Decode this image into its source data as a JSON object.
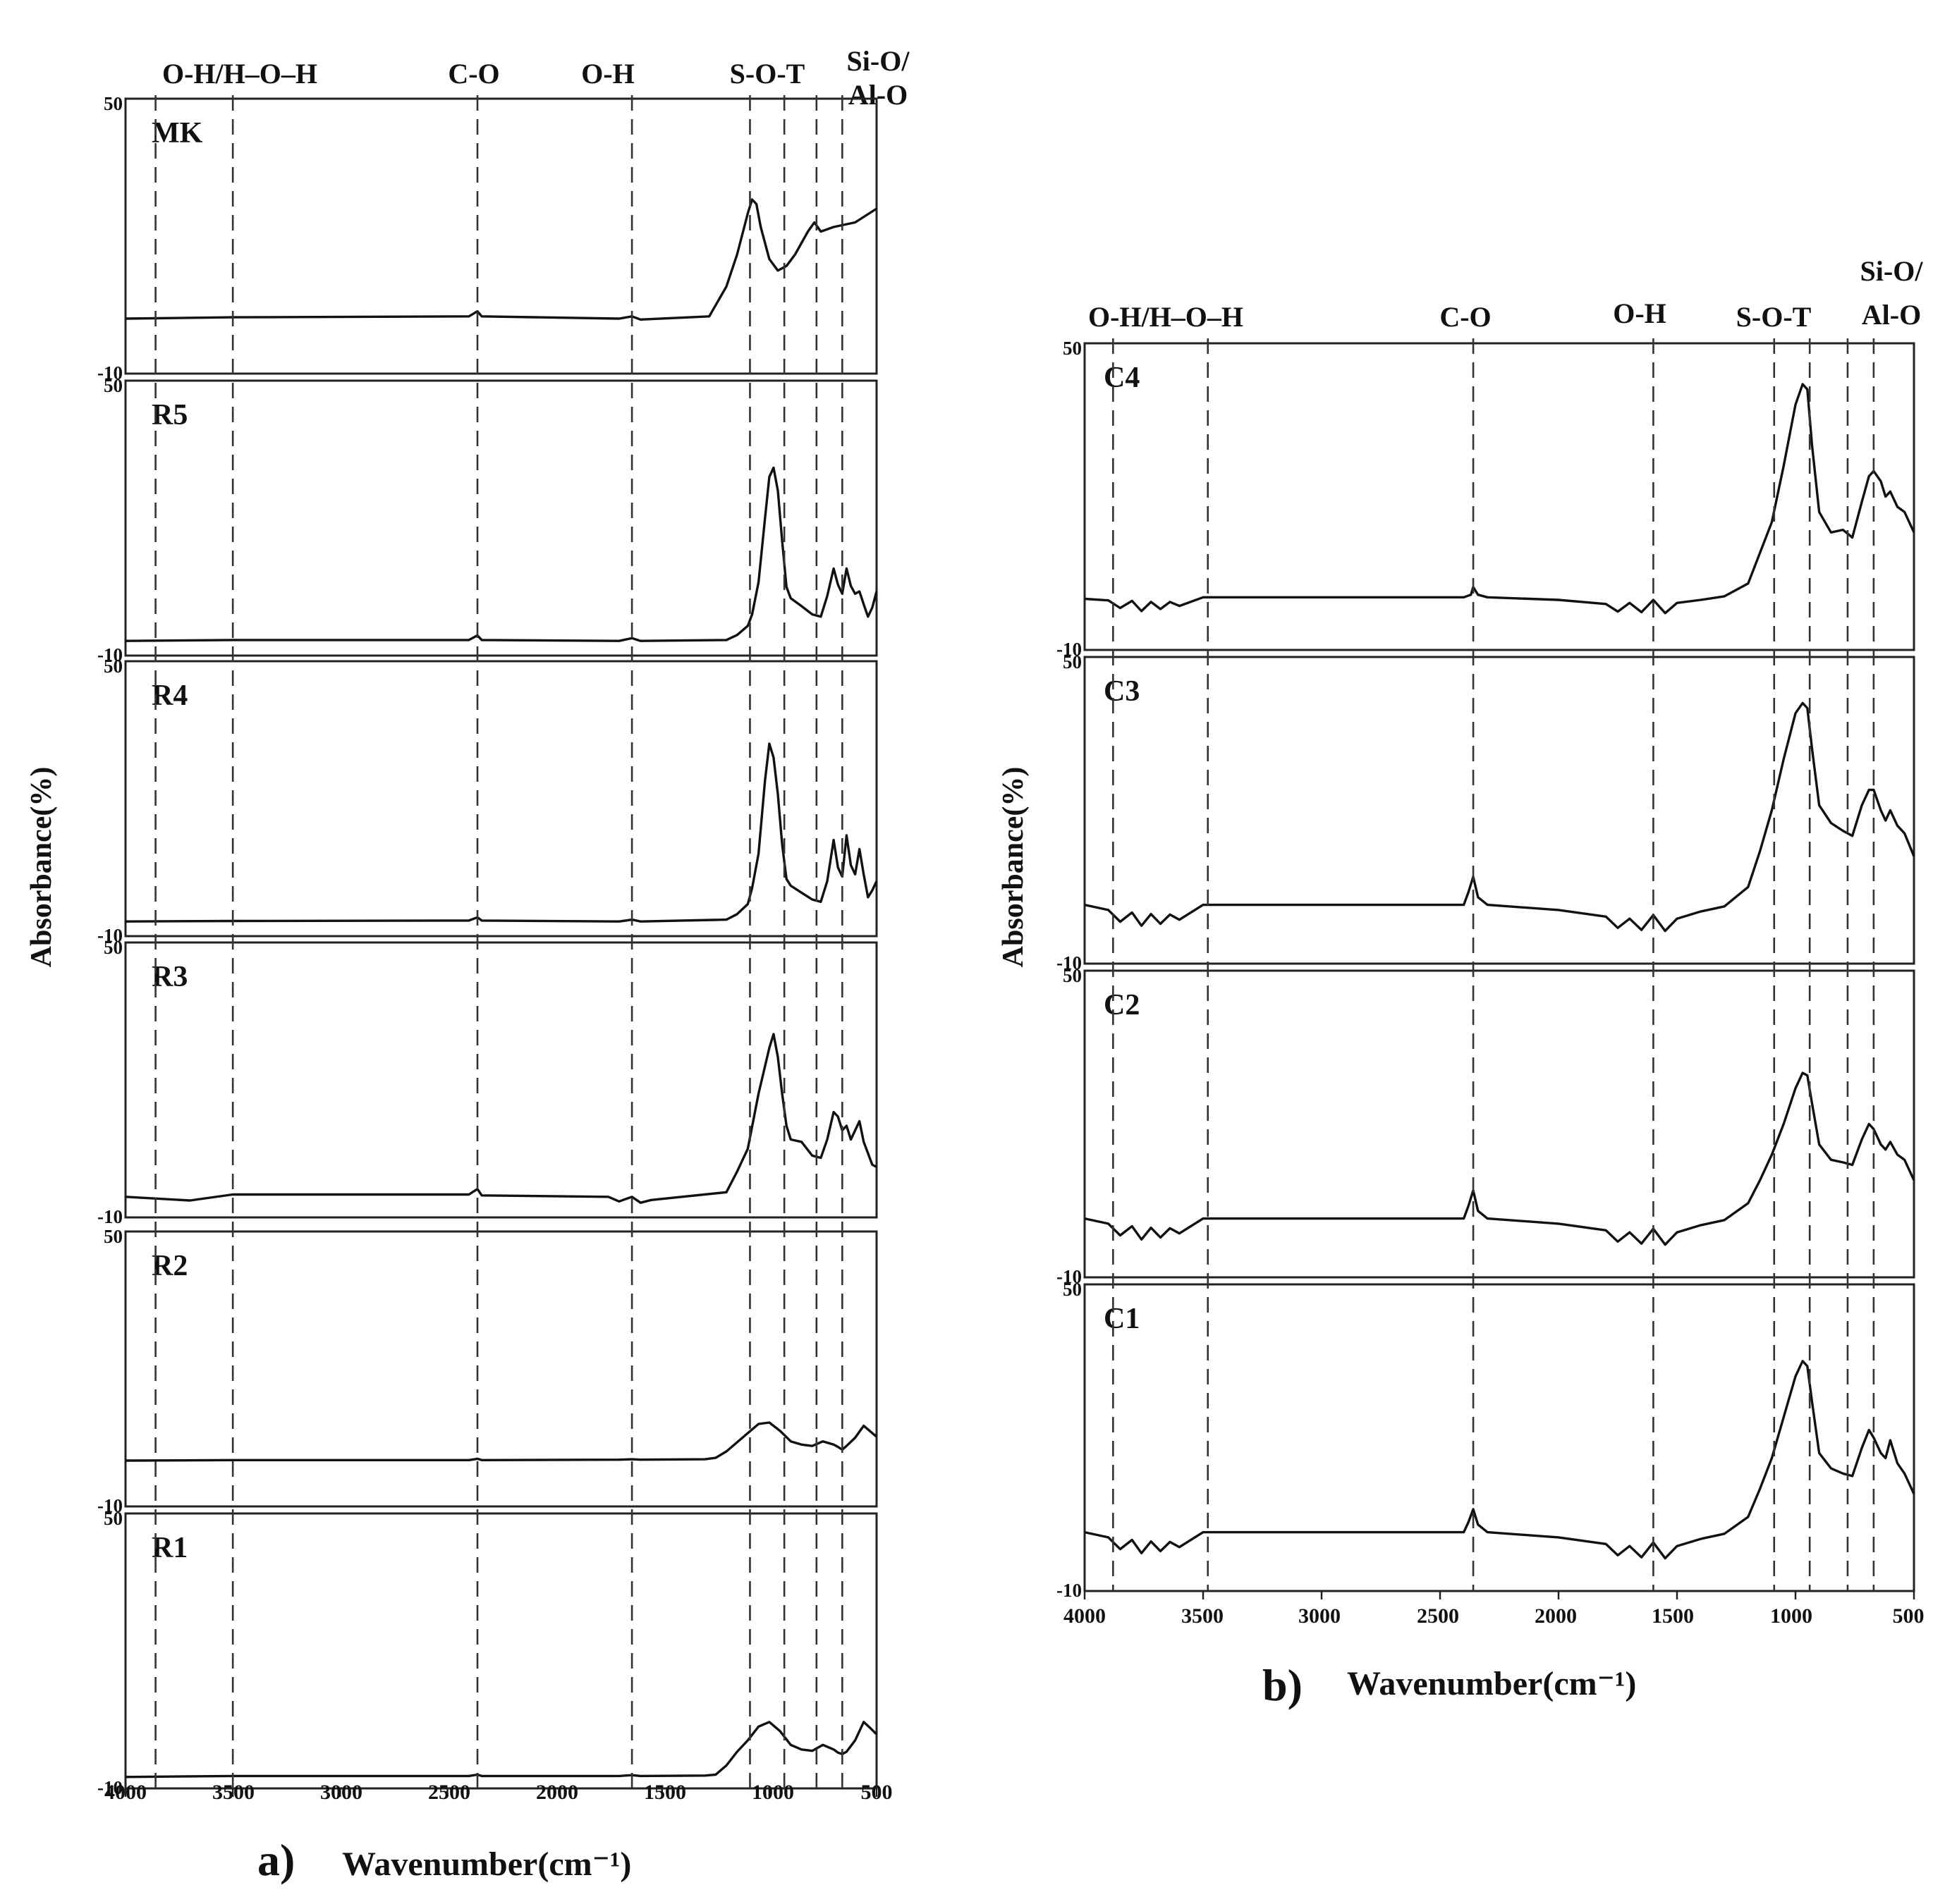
{
  "figure": {
    "a": {
      "label": "a)",
      "xlabel": "Wavenumber(cm⁻¹)",
      "ylabel": "Absorbance(%)",
      "band_labels": [
        "O-H/H–O–H",
        "C-O",
        "O-H",
        "S-O-T",
        "Si-O/",
        "Al-O"
      ],
      "ytick_top": "50",
      "ytick_bottom": "-10",
      "xticks": [
        "4000",
        "3500",
        "3000",
        "2500",
        "2000",
        "1500",
        "1000",
        "500"
      ],
      "panels": [
        "MK",
        "R5",
        "R4",
        "R3",
        "R2",
        "R1"
      ]
    },
    "b": {
      "label": "b)",
      "xlabel": "Wavenumber(cm⁻¹)",
      "ylabel": "Absorbance(%)",
      "band_labels": [
        "O-H/H–O–H",
        "C-O",
        "O-H",
        "S-O-T",
        "Si-O/",
        "Al-O"
      ],
      "ytick_top": "50",
      "ytick_bottom": "-10",
      "xticks": [
        "4000",
        "3500",
        "3000",
        "2500",
        "2000",
        "1500",
        "1000",
        "500"
      ],
      "panels": [
        "C4",
        "C3",
        "C2",
        "C1"
      ]
    }
  },
  "chart_data": [
    {
      "type": "line",
      "panel_group": "a)",
      "xlabel": "Wavenumber(cm⁻¹)",
      "ylabel": "Absorbance(%)",
      "xlim": [
        4000,
        500
      ],
      "ylim": [
        -10,
        50
      ],
      "reference_lines": [
        3860,
        3500,
        2360,
        1640,
        1090,
        930,
        780,
        660
      ],
      "band_labels": [
        "O-H/H–O–H",
        "C-O",
        "O-H",
        "S-O-T",
        "Si-O/Al-O"
      ],
      "series": [
        {
          "name": "MK",
          "x": [
            4000,
            3500,
            2400,
            2360,
            2340,
            1700,
            1640,
            1600,
            1280,
            1200,
            1150,
            1100,
            1080,
            1060,
            1040,
            1000,
            960,
            920,
            880,
            820,
            790,
            760,
            700,
            600,
            500
          ],
          "y": [
            2,
            2.3,
            2.5,
            3.6,
            2.5,
            2,
            2.5,
            1.8,
            2.5,
            9,
            16,
            25,
            28,
            27,
            22,
            15,
            12.5,
            13.5,
            16,
            21,
            23,
            21,
            22,
            23,
            26
          ]
        },
        {
          "name": "R5",
          "x": [
            4000,
            3500,
            2400,
            2360,
            2340,
            1700,
            1640,
            1600,
            1200,
            1150,
            1100,
            1080,
            1050,
            1020,
            1000,
            980,
            960,
            940,
            920,
            900,
            850,
            800,
            760,
            730,
            700,
            680,
            660,
            640,
            620,
            600,
            580,
            560,
            540,
            520,
            500
          ],
          "y": [
            -6.8,
            -6.6,
            -6.6,
            -5.6,
            -6.6,
            -6.8,
            -6.2,
            -6.8,
            -6.6,
            -5.5,
            -3.5,
            -1,
            6,
            20,
            29,
            31,
            26,
            15,
            5,
            2.5,
            0.8,
            -1,
            -1.5,
            3,
            9,
            5.5,
            3.5,
            9,
            5.2,
            3.5,
            4,
            1.2,
            -1.5,
            0.5,
            4
          ]
        },
        {
          "name": "R4",
          "x": [
            4000,
            3500,
            2400,
            2360,
            2340,
            1700,
            1640,
            1600,
            1200,
            1150,
            1100,
            1080,
            1050,
            1020,
            1000,
            980,
            960,
            940,
            920,
            900,
            850,
            800,
            760,
            730,
            700,
            680,
            660,
            640,
            620,
            600,
            580,
            560,
            540,
            520,
            500
          ],
          "y": [
            -6.8,
            -6.7,
            -6.6,
            -5.9,
            -6.6,
            -6.8,
            -6.4,
            -6.8,
            -6.4,
            -5.2,
            -3,
            0.5,
            8,
            24,
            32,
            29,
            21,
            10,
            2.5,
            1,
            -0.5,
            -2,
            -2.5,
            2,
            11,
            5,
            3,
            12,
            5.5,
            3.5,
            9,
            3.5,
            -1.5,
            0,
            2
          ]
        },
        {
          "name": "R3",
          "x": [
            4000,
            3700,
            3500,
            2400,
            2360,
            2340,
            1750,
            1700,
            1640,
            1600,
            1550,
            1200,
            1150,
            1100,
            1050,
            1000,
            980,
            960,
            940,
            920,
            900,
            850,
            800,
            760,
            730,
            700,
            680,
            660,
            640,
            620,
            600,
            580,
            560,
            540,
            520,
            500
          ],
          "y": [
            -5.5,
            -6.3,
            -5,
            -5,
            -3.8,
            -5.2,
            -5.5,
            -6.5,
            -5.5,
            -6.8,
            -6.2,
            -4.5,
            0,
            5,
            17,
            27,
            30,
            25,
            17,
            10,
            7,
            6.5,
            3.5,
            3,
            7,
            13,
            12,
            9,
            10,
            7,
            9,
            11,
            6.5,
            4,
            1.5,
            1
          ]
        },
        {
          "name": "R2",
          "x": [
            4000,
            3500,
            2400,
            2360,
            2340,
            1700,
            1640,
            1600,
            1300,
            1250,
            1200,
            1150,
            1100,
            1050,
            1000,
            950,
            900,
            850,
            800,
            750,
            700,
            680,
            660,
            640,
            600,
            560,
            530,
            500
          ],
          "y": [
            0,
            0.1,
            0.1,
            0.4,
            0.1,
            0.2,
            0.3,
            0.2,
            0.3,
            0.6,
            2,
            4,
            6,
            8,
            8.3,
            6.5,
            4.2,
            3.5,
            3.2,
            4.2,
            3.5,
            3,
            2.4,
            3.2,
            5,
            7.6,
            6.4,
            5.2
          ]
        },
        {
          "name": "R1",
          "x": [
            4000,
            3500,
            2400,
            2360,
            2340,
            1700,
            1640,
            1600,
            1300,
            1250,
            1200,
            1150,
            1100,
            1050,
            1000,
            950,
            900,
            850,
            800,
            750,
            700,
            680,
            660,
            640,
            600,
            560,
            530,
            500
          ],
          "y": [
            -7.5,
            -7.3,
            -7.3,
            -7,
            -7.3,
            -7.3,
            -7.1,
            -7.3,
            -7.2,
            -7,
            -5,
            -2,
            0.5,
            3.5,
            4.5,
            2.5,
            -0.5,
            -1.5,
            -1.8,
            -0.5,
            -1.5,
            -2.2,
            -2.5,
            -2,
            0.5,
            4.5,
            3.2,
            1.8
          ]
        }
      ]
    },
    {
      "type": "line",
      "panel_group": "b)",
      "xlabel": "Wavenumber(cm⁻¹)",
      "ylabel": "Absorbance(%)",
      "xlim": [
        4000,
        500
      ],
      "ylim": [
        -10,
        50
      ],
      "reference_lines": [
        3880,
        3480,
        2360,
        1600,
        1090,
        940,
        780,
        670
      ],
      "band_labels": [
        "O-H/H–O–H",
        "C-O",
        "O-H",
        "S-O-T",
        "Si-O/Al-O"
      ],
      "series": [
        {
          "name": "C4",
          "x": [
            4000,
            3900,
            3850,
            3800,
            3760,
            3720,
            3680,
            3640,
            3600,
            3500,
            2400,
            2370,
            2360,
            2340,
            2300,
            2000,
            1800,
            1750,
            1700,
            1650,
            1600,
            1550,
            1500,
            1400,
            1300,
            1200,
            1150,
            1100,
            1050,
            1000,
            970,
            950,
            930,
            900,
            850,
            800,
            760,
            720,
            690,
            670,
            640,
            620,
            600,
            570,
            540,
            500
          ],
          "y": [
            0,
            -0.3,
            -1.8,
            -0.4,
            -2.4,
            -0.6,
            -2,
            -0.6,
            -1.4,
            0.3,
            0.3,
            0.8,
            2.3,
            0.8,
            0.3,
            -0.2,
            -1,
            -2.5,
            -0.8,
            -2.6,
            -0.2,
            -2.8,
            -0.8,
            -0.2,
            0.5,
            3,
            9,
            15,
            26,
            38,
            42,
            41,
            30,
            17,
            13,
            13.5,
            12,
            19,
            24,
            25,
            23,
            20,
            21,
            18,
            17,
            13
          ]
        },
        {
          "name": "C3",
          "x": [
            4000,
            3900,
            3850,
            3800,
            3760,
            3720,
            3680,
            3640,
            3600,
            3500,
            2400,
            2380,
            2360,
            2340,
            2300,
            2000,
            1800,
            1750,
            1700,
            1650,
            1600,
            1550,
            1500,
            1400,
            1300,
            1200,
            1150,
            1100,
            1050,
            1000,
            970,
            950,
            930,
            900,
            850,
            800,
            760,
            720,
            690,
            670,
            640,
            620,
            600,
            570,
            540,
            500
          ],
          "y": [
            1.5,
            0.5,
            -1.8,
            0,
            -2.6,
            -0.3,
            -2.2,
            -0.4,
            -1.4,
            1.5,
            1.5,
            4,
            7,
            3,
            1.5,
            0.5,
            -0.8,
            -3,
            -1.2,
            -3.4,
            -0.5,
            -3.6,
            -1.2,
            0.2,
            1.2,
            5,
            12,
            20,
            30,
            39,
            41,
            40,
            32,
            21,
            17.5,
            16,
            15,
            21,
            24,
            24,
            20,
            18,
            20,
            17,
            15.5,
            11
          ]
        },
        {
          "name": "C2",
          "x": [
            4000,
            3900,
            3850,
            3800,
            3760,
            3720,
            3680,
            3640,
            3600,
            3500,
            2400,
            2380,
            2360,
            2340,
            2300,
            2000,
            1800,
            1750,
            1700,
            1650,
            1600,
            1550,
            1500,
            1400,
            1300,
            1200,
            1150,
            1100,
            1050,
            1000,
            970,
            950,
            930,
            900,
            850,
            800,
            760,
            720,
            690,
            670,
            640,
            620,
            600,
            570,
            540,
            500
          ],
          "y": [
            1.5,
            0.5,
            -1.8,
            0,
            -2.6,
            -0.3,
            -2.2,
            -0.4,
            -1.4,
            1.5,
            1.5,
            4,
            7,
            3,
            1.5,
            0.5,
            -0.8,
            -3,
            -1.2,
            -3.4,
            -0.5,
            -3.6,
            -1.2,
            0.2,
            1.2,
            4.5,
            9,
            14,
            20,
            27,
            30,
            29.5,
            24,
            16,
            13,
            12.5,
            12,
            17,
            20,
            19,
            16,
            15,
            16.5,
            14,
            13,
            9
          ]
        },
        {
          "name": "C1",
          "x": [
            4000,
            3900,
            3850,
            3800,
            3760,
            3720,
            3680,
            3640,
            3600,
            3500,
            2400,
            2380,
            2360,
            2340,
            2300,
            2000,
            1800,
            1750,
            1700,
            1650,
            1600,
            1550,
            1500,
            1400,
            1300,
            1200,
            1150,
            1100,
            1050,
            1000,
            970,
            950,
            930,
            900,
            850,
            800,
            760,
            720,
            690,
            670,
            640,
            620,
            600,
            570,
            540,
            500
          ],
          "y": [
            1.5,
            0.5,
            -1.8,
            0,
            -2.6,
            -0.3,
            -2.2,
            -0.4,
            -1.4,
            1.5,
            1.5,
            3.5,
            6,
            3,
            1.5,
            0.5,
            -0.8,
            -3,
            -1.2,
            -3.4,
            -0.5,
            -3.6,
            -1.2,
            0.2,
            1.2,
            4.5,
            10,
            16,
            24,
            32,
            35,
            34,
            27,
            17,
            14,
            13,
            12.5,
            18,
            21.5,
            20,
            17,
            16,
            19.5,
            15,
            13,
            9
          ]
        }
      ]
    }
  ]
}
